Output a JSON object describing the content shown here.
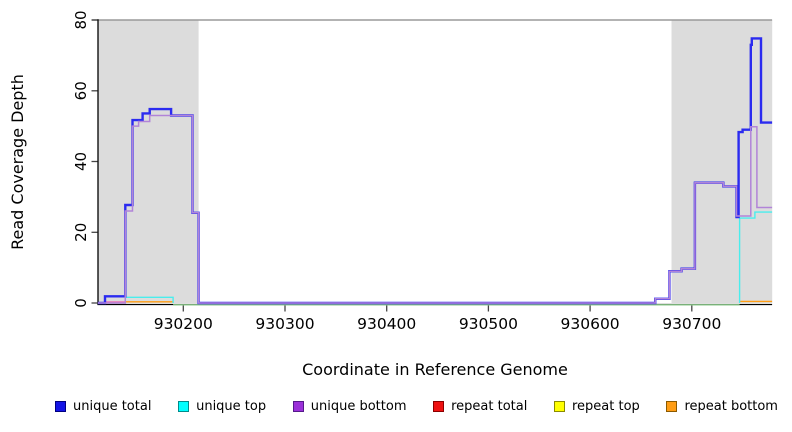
{
  "chart_data": {
    "type": "line",
    "subtype": "step-coverage-plot",
    "title": "",
    "xlabel": "Coordinate in Reference Genome",
    "ylabel": "Read Coverage Depth",
    "xlim": [
      930116,
      930779
    ],
    "ylim": [
      0,
      80
    ],
    "x_ticks": [
      930200,
      930300,
      930400,
      930500,
      930600,
      930700
    ],
    "y_ticks": [
      0,
      20,
      40,
      60,
      80
    ],
    "grid": false,
    "top_reference_line_y": 80,
    "shaded_regions": [
      {
        "x0": 930116,
        "x1": 930215,
        "color": "#dcdcdc"
      },
      {
        "x0": 930680,
        "x1": 930779,
        "color": "#dcdcdc"
      }
    ],
    "series": [
      {
        "name": "repeat top",
        "color": "#8bc98b",
        "width": 1.4,
        "segments": [
          [
            [
              930190,
              0
            ],
            [
              930747,
              0
            ]
          ]
        ]
      },
      {
        "name": "repeat total",
        "color": "#ea6fb5",
        "width": 1.4,
        "segments": [
          [
            [
              930124,
              0.3
            ],
            [
              930143,
              0.3
            ]
          ]
        ]
      },
      {
        "name": "repeat bottom",
        "color": "#ff9d14",
        "width": 1.4,
        "segments": [
          [
            [
              930143,
              0.35
            ],
            [
              930190,
              0.35
            ]
          ],
          [
            [
              930747,
              0.45
            ],
            [
              930779,
              0.45
            ]
          ]
        ]
      },
      {
        "name": "unique top",
        "color": "#49eded",
        "width": 1.4,
        "segments": [
          [
            [
              930143,
              1.6
            ],
            [
              930190,
              1.6
            ],
            [
              930190,
              0
            ]
          ],
          [
            [
              930747,
              0
            ],
            [
              930747,
              24
            ],
            [
              930762,
              24
            ],
            [
              930762,
              25.7
            ],
            [
              930779,
              25.7
            ]
          ]
        ]
      },
      {
        "name": "unique total",
        "color": "#2b2bf0",
        "width": 2.4,
        "segments": [
          [
            [
              930116,
              0
            ],
            [
              930123,
              0
            ],
            [
              930123,
              1.9
            ],
            [
              930143,
              1.9
            ],
            [
              930143,
              27.7
            ],
            [
              930150,
              27.7
            ],
            [
              930150,
              51.7
            ],
            [
              930160,
              51.7
            ],
            [
              930160,
              53.6
            ],
            [
              930167,
              53.6
            ],
            [
              930167,
              54.8
            ],
            [
              930188,
              54.8
            ],
            [
              930188,
              53
            ],
            [
              930209,
              53
            ],
            [
              930209,
              25.5
            ],
            [
              930215,
              25.5
            ],
            [
              930215,
              0
            ],
            [
              930664,
              0
            ],
            [
              930664,
              1.2
            ],
            [
              930678,
              1.2
            ],
            [
              930678,
              9
            ],
            [
              930690,
              9
            ],
            [
              930690,
              9.7
            ],
            [
              930703,
              9.7
            ],
            [
              930703,
              34
            ],
            [
              930731,
              34
            ],
            [
              930731,
              33
            ],
            [
              930744,
              33
            ],
            [
              930744,
              24.3
            ],
            [
              930746,
              24.3
            ],
            [
              930746,
              48.3
            ],
            [
              930750,
              48.3
            ],
            [
              930750,
              49
            ],
            [
              930758,
              49
            ],
            [
              930758,
              73
            ],
            [
              930759,
              73
            ],
            [
              930759,
              74.8
            ],
            [
              930768,
              74.8
            ],
            [
              930768,
              51
            ],
            [
              930779,
              51
            ]
          ]
        ]
      },
      {
        "name": "unique bottom",
        "color": "#b184d8",
        "width": 1.5,
        "segments": [
          [
            [
              930116,
              0
            ],
            [
              930143,
              0
            ],
            [
              930143,
              26
            ],
            [
              930150,
              26
            ],
            [
              930150,
              50
            ],
            [
              930156,
              50
            ],
            [
              930156,
              51.3
            ],
            [
              930167,
              51.3
            ],
            [
              930167,
              53
            ],
            [
              930209,
              53
            ],
            [
              930209,
              25.5
            ],
            [
              930215,
              25.5
            ],
            [
              930215,
              0
            ],
            [
              930664,
              0
            ],
            [
              930664,
              1.2
            ],
            [
              930678,
              1.2
            ],
            [
              930678,
              9
            ],
            [
              930690,
              9
            ],
            [
              930690,
              9.7
            ],
            [
              930703,
              9.7
            ],
            [
              930703,
              34
            ],
            [
              930731,
              34
            ],
            [
              930731,
              33
            ],
            [
              930744,
              33
            ],
            [
              930744,
              24.6
            ],
            [
              930758,
              24.6
            ],
            [
              930758,
              49.8
            ],
            [
              930764,
              49.8
            ],
            [
              930764,
              27
            ],
            [
              930779,
              27
            ]
          ]
        ]
      }
    ],
    "legend": {
      "position": "bottom",
      "items": [
        {
          "label": "unique total",
          "fill": "#1414e6",
          "border": "#000080"
        },
        {
          "label": "unique top",
          "fill": "#00ffff",
          "border": "#008b8b"
        },
        {
          "label": "unique bottom",
          "fill": "#9b30d9",
          "border": "#551a8b"
        },
        {
          "label": "repeat total",
          "fill": "#ee1111",
          "border": "#8b0000"
        },
        {
          "label": "repeat top",
          "fill": "#ffff00",
          "border": "#8b8b00"
        },
        {
          "label": "repeat bottom",
          "fill": "#ff9d14",
          "border": "#8b5a00"
        }
      ]
    },
    "axis_colors": {
      "axis_line": "#000000",
      "tick": "#444444",
      "top_line": "#9a9a9a"
    }
  }
}
